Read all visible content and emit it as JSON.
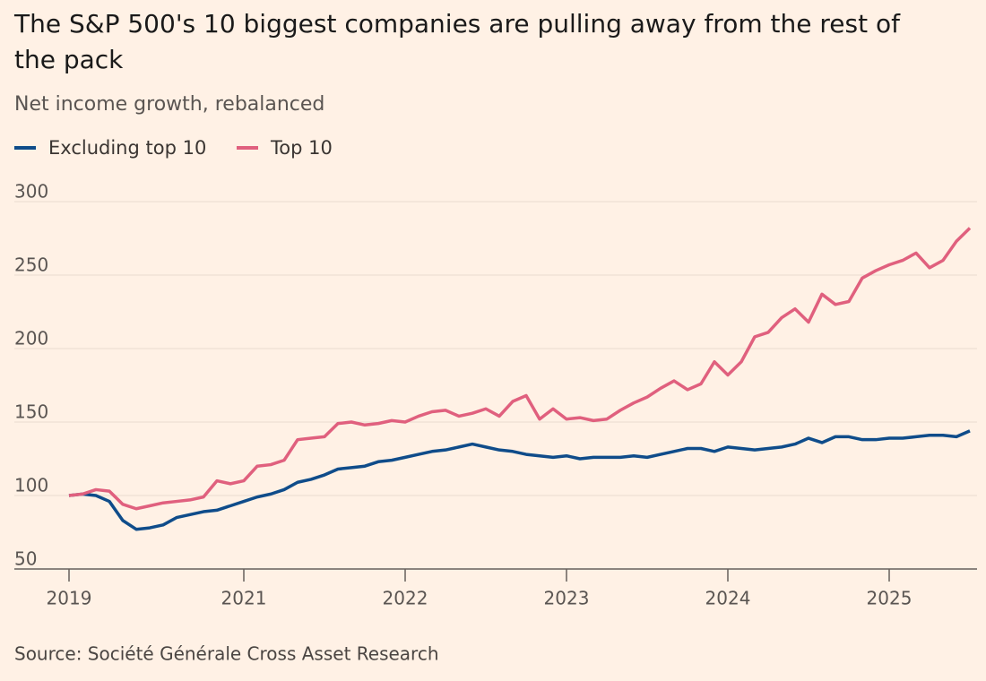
{
  "chart_data": {
    "type": "line",
    "title": "The S&P 500's 10 biggest companies are pulling away from the rest of the pack",
    "subtitle": "Net income growth, rebalanced",
    "source": "Source: Société Générale Cross Asset Research",
    "x": [
      0,
      1,
      2,
      3,
      4,
      5,
      6,
      7,
      8,
      9,
      10,
      11,
      12,
      13,
      14,
      15,
      16,
      17,
      18,
      19,
      20,
      21,
      22,
      23,
      24,
      25,
      26,
      27,
      28,
      29,
      30,
      31,
      32,
      33,
      34,
      35,
      36,
      37,
      38,
      39,
      40,
      41,
      42,
      43,
      44,
      45,
      46,
      47,
      48,
      49,
      50,
      51,
      52,
      53,
      54,
      55,
      56,
      57,
      58,
      59,
      60,
      61,
      62,
      63,
      64,
      65,
      66,
      67
    ],
    "series": [
      {
        "name": "Excluding top 10",
        "color": "#0f4c8a",
        "values": [
          100,
          101,
          100,
          96,
          83,
          77,
          78,
          80,
          85,
          87,
          89,
          90,
          93,
          96,
          99,
          101,
          104,
          109,
          111,
          114,
          118,
          119,
          120,
          123,
          124,
          126,
          128,
          130,
          131,
          133,
          135,
          133,
          131,
          130,
          128,
          127,
          126,
          127,
          125,
          126,
          126,
          126,
          127,
          126,
          128,
          130,
          132,
          132,
          130,
          133,
          132,
          131,
          132,
          133,
          135,
          139,
          136,
          140,
          140,
          138,
          138,
          139,
          139,
          140,
          141,
          141,
          140,
          144
        ]
      },
      {
        "name": "Top 10",
        "color": "#e0607e",
        "values": [
          100,
          101,
          104,
          103,
          94,
          91,
          93,
          95,
          96,
          97,
          99,
          110,
          108,
          110,
          120,
          121,
          124,
          138,
          139,
          140,
          149,
          150,
          148,
          149,
          151,
          150,
          154,
          157,
          158,
          154,
          156,
          159,
          154,
          164,
          168,
          152,
          159,
          152,
          153,
          151,
          152,
          158,
          163,
          167,
          173,
          178,
          172,
          176,
          191,
          182,
          191,
          208,
          211,
          221,
          227,
          218,
          237,
          230,
          232,
          248,
          253,
          257,
          260,
          265,
          255,
          260,
          273,
          282
        ]
      }
    ],
    "xlim": [
      0,
      67
    ],
    "xticks": [
      {
        "value": 0,
        "label": "2019"
      },
      {
        "value": 13,
        "label": "2021"
      },
      {
        "value": 25,
        "label": "2022"
      },
      {
        "value": 37,
        "label": "2023"
      },
      {
        "value": 49,
        "label": "2024"
      },
      {
        "value": 61,
        "label": "2025"
      }
    ],
    "ylim": [
      50,
      300
    ],
    "yticks": [
      50,
      100,
      150,
      200,
      250,
      300
    ],
    "grid": true
  }
}
